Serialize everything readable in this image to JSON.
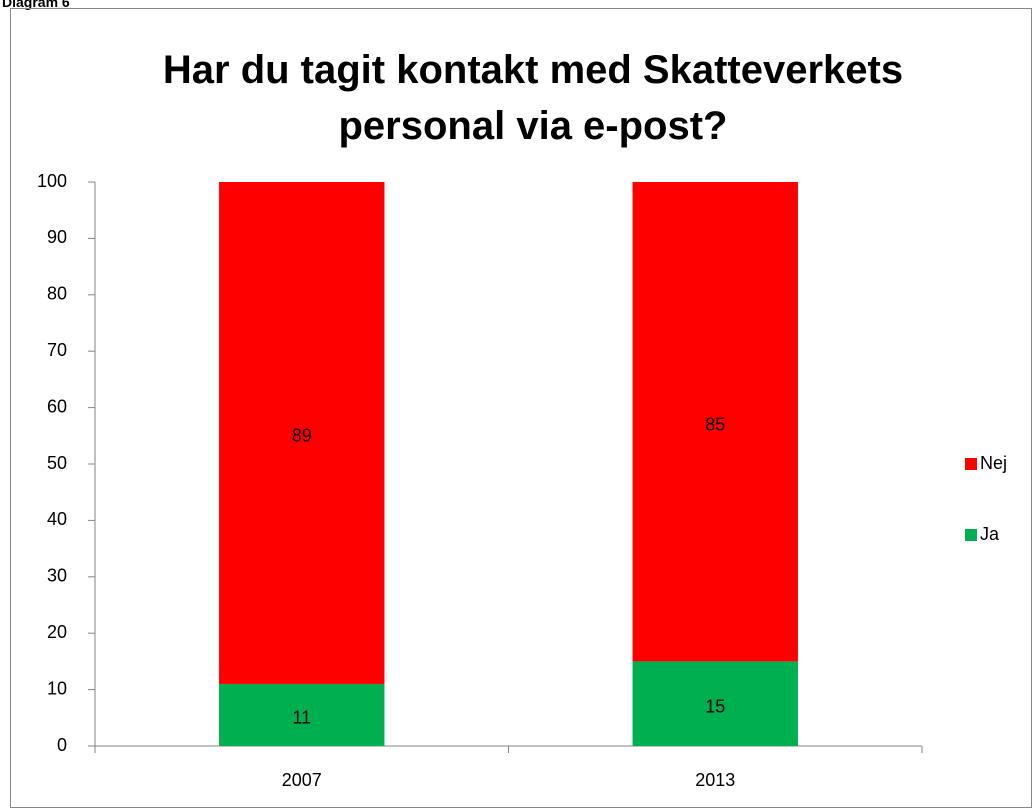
{
  "chart_data": {
    "type": "stacked_bar",
    "caption": "Diagram 6",
    "title": "Har du tagit kontakt med Skatteverkets personal via e-post?",
    "categories": [
      "2007",
      "2013"
    ],
    "series": [
      {
        "name": "Ja",
        "color": "#00b050",
        "values": [
          11,
          15
        ]
      },
      {
        "name": "Nej",
        "color": "#ff0000",
        "values": [
          89,
          85
        ]
      }
    ],
    "ylim": [
      0,
      100
    ],
    "yticks": [
      0,
      10,
      20,
      30,
      40,
      50,
      60,
      70,
      80,
      90,
      100
    ],
    "grid": false,
    "legend": "right",
    "data_labels": true
  }
}
